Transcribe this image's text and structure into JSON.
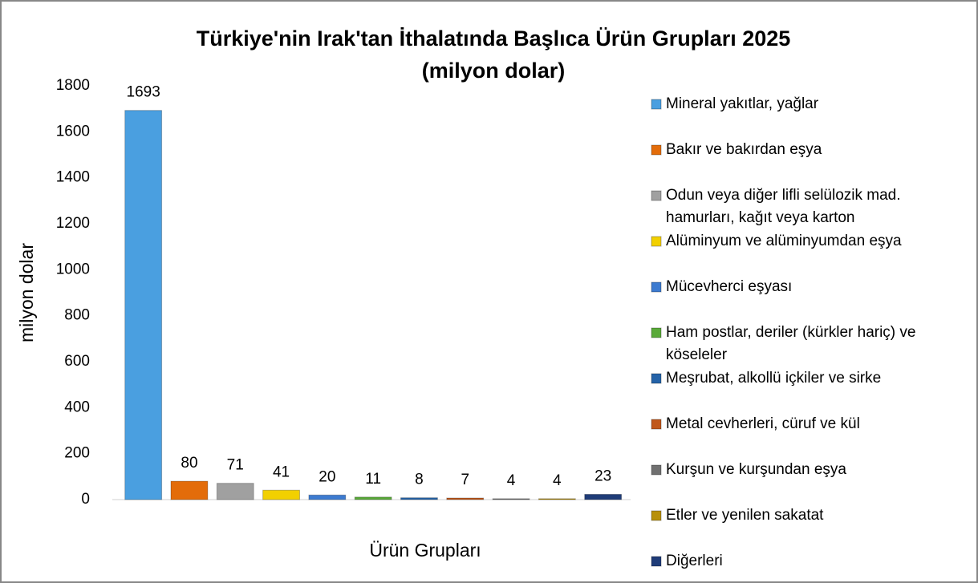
{
  "chart_data": {
    "type": "bar",
    "title": "Türkiye'nin Irak'tan İthalatında Başlıca Ürün Grupları 2025 (milyon dolar)",
    "x_label": "Ürün Grupları",
    "y_label": "milyon dolar",
    "ylim": [
      0,
      1800
    ],
    "yticks": [
      0,
      200,
      400,
      600,
      800,
      1000,
      1200,
      1400,
      1600,
      1800
    ],
    "grid": false,
    "legend": "right",
    "series": [
      {
        "name": "Mineral yakıtlar, yağlar",
        "color": "#4a9fe0",
        "values": [
          1693
        ]
      },
      {
        "name": "Bakır ve bakırdan eşya",
        "color": "#e36c0a",
        "values": [
          80
        ]
      },
      {
        "name": "Odun veya diğer lifli selülozik mad. hamurları, kağıt veya karton",
        "color": "#a0a0a0",
        "values": [
          71
        ]
      },
      {
        "name": "Alüminyum ve alüminyumdan eşya",
        "color": "#f2d000",
        "values": [
          41
        ]
      },
      {
        "name": "Mücevherci eşyası",
        "color": "#3d7bd0",
        "values": [
          20
        ]
      },
      {
        "name": "Ham postlar, deriler (kürkler hariç) ve köseleler",
        "color": "#5aaa3a",
        "values": [
          11
        ]
      },
      {
        "name": "Meşrubat, alkollü içkiler ve sirke",
        "color": "#2563a8",
        "values": [
          8
        ]
      },
      {
        "name": "Metal cevherleri, cüruf ve kül",
        "color": "#c0581c",
        "values": [
          7
        ]
      },
      {
        "name": "Kurşun ve kurşundan eşya",
        "color": "#707070",
        "values": [
          4
        ]
      },
      {
        "name": "Etler ve yenilen sakatat",
        "color": "#b8900a",
        "values": [
          4
        ]
      },
      {
        "name": "Diğerleri",
        "color": "#1f3c78",
        "values": [
          23
        ]
      }
    ]
  }
}
